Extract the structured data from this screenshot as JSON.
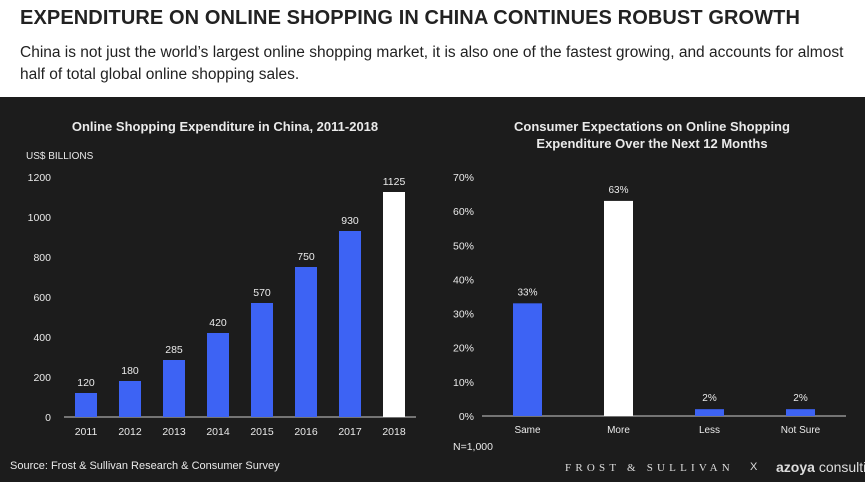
{
  "page": {
    "title": "EXPENDITURE ON ONLINE SHOPPING IN CHINA CONTINUES ROBUST GROWTH",
    "subtitle": "China is not just the world’s largest online shopping market, it is also one of the fastest growing, and accounts for almost half of total global online shopping sales.",
    "source": "Source: Frost & Sullivan Research & Consumer Survey",
    "brand_frost": "FROST & SULLIVAN",
    "brand_x": "X",
    "brand_azoya": "azoya",
    "brand_consulting": "consulting"
  },
  "colors": {
    "bar": "#3d63f4",
    "highlight": "#ffffff",
    "background": "#1c1c1c"
  },
  "chart_data": [
    {
      "type": "bar",
      "title": "Online Shopping Expenditure in China, 2011-2018",
      "ylabel": "US$ BILLIONS",
      "xlabel": "",
      "categories": [
        "2011",
        "2012",
        "2013",
        "2014",
        "2015",
        "2016",
        "2017",
        "2018"
      ],
      "values": [
        120,
        180,
        285,
        420,
        570,
        750,
        930,
        1125
      ],
      "value_labels": [
        "120",
        "180",
        "285",
        "420",
        "570",
        "750",
        "930",
        "1125"
      ],
      "highlight_index": 7,
      "ylim": [
        0,
        1200
      ],
      "yticks": [
        0,
        200,
        400,
        600,
        800,
        1000,
        1200
      ],
      "ytick_labels": [
        "0",
        "200",
        "400",
        "600",
        "800",
        "1000",
        "1200"
      ],
      "grid": false,
      "legend": "none"
    },
    {
      "type": "bar",
      "title_lines": [
        "Consumer Expectations on Online Shopping",
        "Expenditure Over the Next 12 Months"
      ],
      "ylabel": "",
      "xlabel": "",
      "categories": [
        "Same",
        "More",
        "Less",
        "Not Sure"
      ],
      "values": [
        33,
        63,
        2,
        2
      ],
      "value_labels": [
        "33%",
        "63%",
        "2%",
        "2%"
      ],
      "highlight_index": 1,
      "ylim": [
        0,
        70
      ],
      "yticks": [
        0,
        10,
        20,
        30,
        40,
        50,
        60,
        70
      ],
      "ytick_labels": [
        "0%",
        "10%",
        "20%",
        "30%",
        "40%",
        "50%",
        "60%",
        "70%"
      ],
      "note": "N=1,000",
      "grid": false,
      "legend": "none"
    }
  ]
}
